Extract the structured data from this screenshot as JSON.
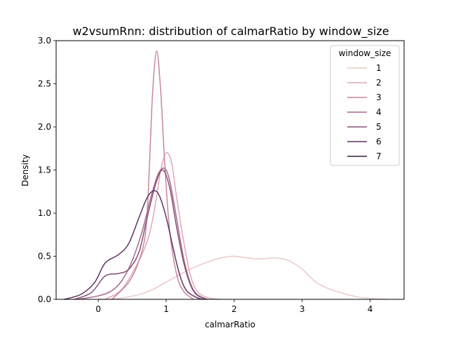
{
  "chart_data": {
    "type": "line",
    "title": "w2vsumRnn: distribution of calmarRatio by window_size",
    "xlabel": "calmarRatio",
    "ylabel": "Density",
    "xlim": [
      -0.62,
      4.5
    ],
    "ylim": [
      0,
      3.0
    ],
    "x_ticks": [
      0,
      1,
      2,
      3,
      4
    ],
    "y_ticks": [
      0.0,
      0.5,
      1.0,
      1.5,
      2.0,
      2.5,
      3.0
    ],
    "x_tick_labels": [
      "0",
      "1",
      "2",
      "3",
      "4"
    ],
    "y_tick_labels": [
      "0.0",
      "0.5",
      "1.0",
      "1.5",
      "2.0",
      "2.5",
      "3.0"
    ],
    "grid": false,
    "legend": {
      "title": "window_size",
      "placement": "top-right"
    },
    "series": [
      {
        "name": "1",
        "color": "#eacac8",
        "points": [
          [
            0.0,
            0.0
          ],
          [
            0.3,
            0.01
          ],
          [
            0.7,
            0.08
          ],
          [
            1.0,
            0.2
          ],
          [
            1.3,
            0.33
          ],
          [
            1.6,
            0.43
          ],
          [
            1.8,
            0.48
          ],
          [
            2.0,
            0.5
          ],
          [
            2.2,
            0.48
          ],
          [
            2.4,
            0.47
          ],
          [
            2.6,
            0.48
          ],
          [
            2.8,
            0.45
          ],
          [
            3.0,
            0.35
          ],
          [
            3.2,
            0.2
          ],
          [
            3.4,
            0.12
          ],
          [
            3.6,
            0.07
          ],
          [
            3.8,
            0.03
          ],
          [
            4.0,
            0.01
          ],
          [
            4.25,
            0.0
          ]
        ]
      },
      {
        "name": "2",
        "color": "#dcaab2",
        "points": [
          [
            0.1,
            0.0
          ],
          [
            0.35,
            0.12
          ],
          [
            0.6,
            0.45
          ],
          [
            0.75,
            0.75
          ],
          [
            0.85,
            1.15
          ],
          [
            0.92,
            1.5
          ],
          [
            1.0,
            1.7
          ],
          [
            1.08,
            1.58
          ],
          [
            1.15,
            1.2
          ],
          [
            1.25,
            0.7
          ],
          [
            1.35,
            0.3
          ],
          [
            1.45,
            0.1
          ],
          [
            1.6,
            0.02
          ],
          [
            1.8,
            0.0
          ]
        ]
      },
      {
        "name": "3",
        "color": "#c9869c",
        "points": [
          [
            0.2,
            0.0
          ],
          [
            0.45,
            0.2
          ],
          [
            0.6,
            0.45
          ],
          [
            0.7,
            0.8
          ],
          [
            0.75,
            1.5
          ],
          [
            0.8,
            2.4
          ],
          [
            0.86,
            2.88
          ],
          [
            0.92,
            2.4
          ],
          [
            0.98,
            1.55
          ],
          [
            1.05,
            0.8
          ],
          [
            1.15,
            0.3
          ],
          [
            1.25,
            0.1
          ],
          [
            1.4,
            0.0
          ]
        ]
      },
      {
        "name": "4",
        "color": "#a9678a",
        "points": [
          [
            -0.3,
            0.0
          ],
          [
            0.0,
            0.04
          ],
          [
            0.2,
            0.1
          ],
          [
            0.35,
            0.22
          ],
          [
            0.5,
            0.45
          ],
          [
            0.65,
            0.8
          ],
          [
            0.78,
            1.2
          ],
          [
            0.88,
            1.45
          ],
          [
            0.97,
            1.52
          ],
          [
            1.05,
            1.38
          ],
          [
            1.15,
            0.95
          ],
          [
            1.25,
            0.5
          ],
          [
            1.35,
            0.2
          ],
          [
            1.45,
            0.06
          ],
          [
            1.6,
            0.0
          ]
        ]
      },
      {
        "name": "5",
        "color": "#845078",
        "points": [
          [
            -0.35,
            0.0
          ],
          [
            -0.1,
            0.08
          ],
          [
            0.1,
            0.27
          ],
          [
            0.3,
            0.3
          ],
          [
            0.45,
            0.35
          ],
          [
            0.6,
            0.55
          ],
          [
            0.72,
            0.95
          ],
          [
            0.85,
            1.35
          ],
          [
            0.95,
            1.5
          ],
          [
            1.05,
            1.3
          ],
          [
            1.15,
            0.85
          ],
          [
            1.25,
            0.45
          ],
          [
            1.35,
            0.18
          ],
          [
            1.45,
            0.05
          ],
          [
            1.6,
            0.0
          ]
        ]
      },
      {
        "name": "6",
        "color": "#5f3463",
        "points": [
          [
            -0.5,
            0.0
          ],
          [
            -0.25,
            0.06
          ],
          [
            -0.05,
            0.2
          ],
          [
            0.1,
            0.42
          ],
          [
            0.3,
            0.52
          ],
          [
            0.45,
            0.65
          ],
          [
            0.6,
            0.95
          ],
          [
            0.72,
            1.18
          ],
          [
            0.82,
            1.26
          ],
          [
            0.9,
            1.2
          ],
          [
            1.0,
            0.95
          ],
          [
            1.1,
            0.6
          ],
          [
            1.2,
            0.28
          ],
          [
            1.3,
            0.1
          ],
          [
            1.45,
            0.02
          ],
          [
            1.55,
            0.0
          ]
        ]
      },
      {
        "name": "7",
        "color": "#2e1e3b",
        "points": []
      }
    ]
  }
}
